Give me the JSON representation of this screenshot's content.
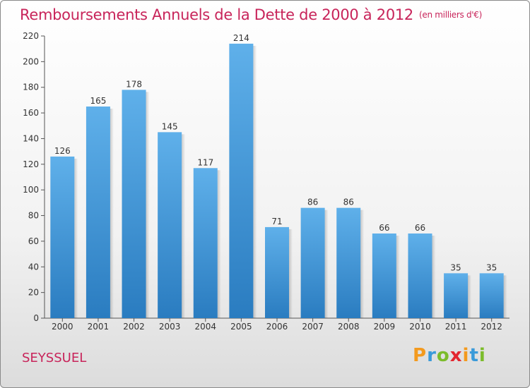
{
  "title": "Remboursements Annuels de la Dette de 2000 à 2012",
  "unit": "(en milliers d'€)",
  "location": "SEYSSUEL",
  "logo": {
    "letters": [
      "P",
      "r",
      "o",
      "x",
      "i",
      "t",
      "i"
    ],
    "colors": [
      "#f39a1e",
      "#3a9ad9",
      "#7cbc2b",
      "#e3262f",
      "#f39a1e",
      "#3a9ad9",
      "#7cbc2b"
    ]
  },
  "colors": {
    "title": "#c8245a",
    "bar_top": "#5fb0ea",
    "bar_bottom": "#2a7cc0"
  },
  "chart_data": {
    "type": "bar",
    "title": "Remboursements Annuels de la Dette de 2000 à 2012",
    "categories": [
      "2000",
      "2001",
      "2002",
      "2003",
      "2004",
      "2005",
      "2006",
      "2007",
      "2008",
      "2009",
      "2010",
      "2011",
      "2012"
    ],
    "values": [
      126,
      165,
      178,
      145,
      117,
      214,
      71,
      86,
      86,
      66,
      66,
      35,
      35
    ],
    "ylim": [
      0,
      220
    ],
    "yticks": [
      0,
      20,
      40,
      60,
      80,
      100,
      120,
      140,
      160,
      180,
      200,
      220
    ],
    "grid": false,
    "xlabel": "",
    "ylabel": ""
  }
}
